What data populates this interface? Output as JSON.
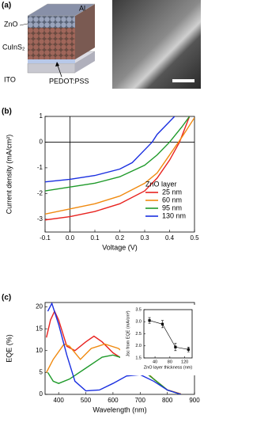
{
  "panel_a": {
    "label": "(a)",
    "layers": [
      "Al",
      "ZnO",
      "CuInS₂",
      "ITO",
      "PEDOT:PSS"
    ]
  },
  "chart_data": [
    {
      "type": "line",
      "label": "(b)",
      "xlabel": "Voltage (V)",
      "ylabel": "Current density (mA/cm²)",
      "xlim": [
        -0.1,
        0.5
      ],
      "xticks": [
        -0.1,
        {
          "value": 0,
          "label": "0.0"
        },
        0.1,
        0.2,
        0.3,
        0.4,
        0.5
      ],
      "ylim": [
        -3.5,
        1
      ],
      "yticks": [
        -3,
        -2,
        -1,
        0,
        1
      ],
      "zero_lines": true,
      "legend_title": "ZnO layer",
      "legend": "lower right",
      "series": [
        {
          "name": "25 nm",
          "color": "#e8231f",
          "x": [
            -0.1,
            0,
            0.1,
            0.2,
            0.3,
            0.35,
            0.4,
            0.44,
            0.48
          ],
          "values": [
            -3.03,
            -2.9,
            -2.7,
            -2.4,
            -1.9,
            -1.4,
            -0.7,
            0,
            1
          ]
        },
        {
          "name": "60 nm",
          "color": "#f08a10",
          "x": [
            -0.1,
            0,
            0.1,
            0.2,
            0.3,
            0.35,
            0.4,
            0.45,
            0.5
          ],
          "values": [
            -2.8,
            -2.6,
            -2.4,
            -2.1,
            -1.6,
            -1.2,
            -0.5,
            0.2,
            0.95
          ]
        },
        {
          "name": "95 nm",
          "color": "#1f9a2a",
          "x": [
            -0.1,
            0,
            0.1,
            0.2,
            0.3,
            0.35,
            0.4,
            0.45,
            0.48
          ],
          "values": [
            -1.9,
            -1.75,
            -1.6,
            -1.35,
            -0.9,
            -0.5,
            0,
            0.6,
            1
          ]
        },
        {
          "name": "130 nm",
          "color": "#1a2fe0",
          "x": [
            -0.1,
            0,
            0.1,
            0.2,
            0.25,
            0.3,
            0.33,
            0.35,
            0.4,
            0.42
          ],
          "values": [
            -1.55,
            -1.45,
            -1.3,
            -1.05,
            -0.8,
            -0.3,
            0,
            0.3,
            0.8,
            1
          ]
        }
      ]
    },
    {
      "type": "line",
      "label": "(c)",
      "xlabel": "Wavelength (nm)",
      "ylabel": "EQE (%)",
      "xlim": [
        350,
        900
      ],
      "xticks": [
        400,
        500,
        600,
        700,
        800,
        900
      ],
      "ylim": [
        0,
        21
      ],
      "yticks": [
        0,
        5,
        10,
        15,
        20
      ],
      "series": [
        {
          "color": "#e8231f",
          "x": [
            355,
            370,
            385,
            400,
            430,
            460,
            500,
            530,
            560,
            600,
            650,
            700,
            750,
            800,
            850
          ],
          "values": [
            13,
            17,
            19,
            17,
            11,
            10,
            12,
            13.3,
            12,
            9.5,
            7.5,
            6,
            3.5,
            1,
            0.1
          ]
        },
        {
          "color": "#f08a10",
          "x": [
            355,
            380,
            420,
            440,
            480,
            520,
            570,
            620,
            700,
            750,
            800,
            850
          ],
          "values": [
            5,
            8,
            11.5,
            11,
            8,
            10.5,
            11.5,
            10.5,
            6.5,
            3.5,
            1,
            0.1
          ]
        },
        {
          "color": "#1f9a2a",
          "x": [
            360,
            380,
            400,
            440,
            500,
            560,
            600,
            650,
            700,
            750,
            800,
            850
          ],
          "values": [
            5,
            3,
            2.5,
            3.5,
            6,
            8.5,
            9,
            8,
            6,
            3.5,
            1,
            0
          ]
        },
        {
          "color": "#1a2fe0",
          "x": [
            360,
            375,
            400,
            430,
            460,
            500,
            550,
            600,
            650,
            700,
            750,
            800,
            850
          ],
          "values": [
            19,
            20.8,
            16,
            9,
            3,
            0.8,
            1,
            2.5,
            4.2,
            4.5,
            3,
            1,
            0
          ]
        }
      ]
    },
    {
      "type": "errorbar",
      "xlabel": "ZnO layer thickness (nm)",
      "ylabel": "Jsc from EQE (mA/cm²)",
      "xlim": [
        10,
        140
      ],
      "xticks": [
        40,
        80,
        120
      ],
      "ylim": [
        1.5,
        3.5
      ],
      "yticks": [
        1.5,
        {
          "value": 2,
          "label": "2.0"
        },
        2.5,
        {
          "value": 3,
          "label": "3.0"
        },
        3.5
      ],
      "color": "#000000",
      "x": [
        25,
        60,
        95,
        130
      ],
      "values": [
        3.05,
        2.9,
        1.95,
        1.85
      ],
      "errors": [
        0.12,
        0.15,
        0.15,
        0.1
      ]
    }
  ]
}
